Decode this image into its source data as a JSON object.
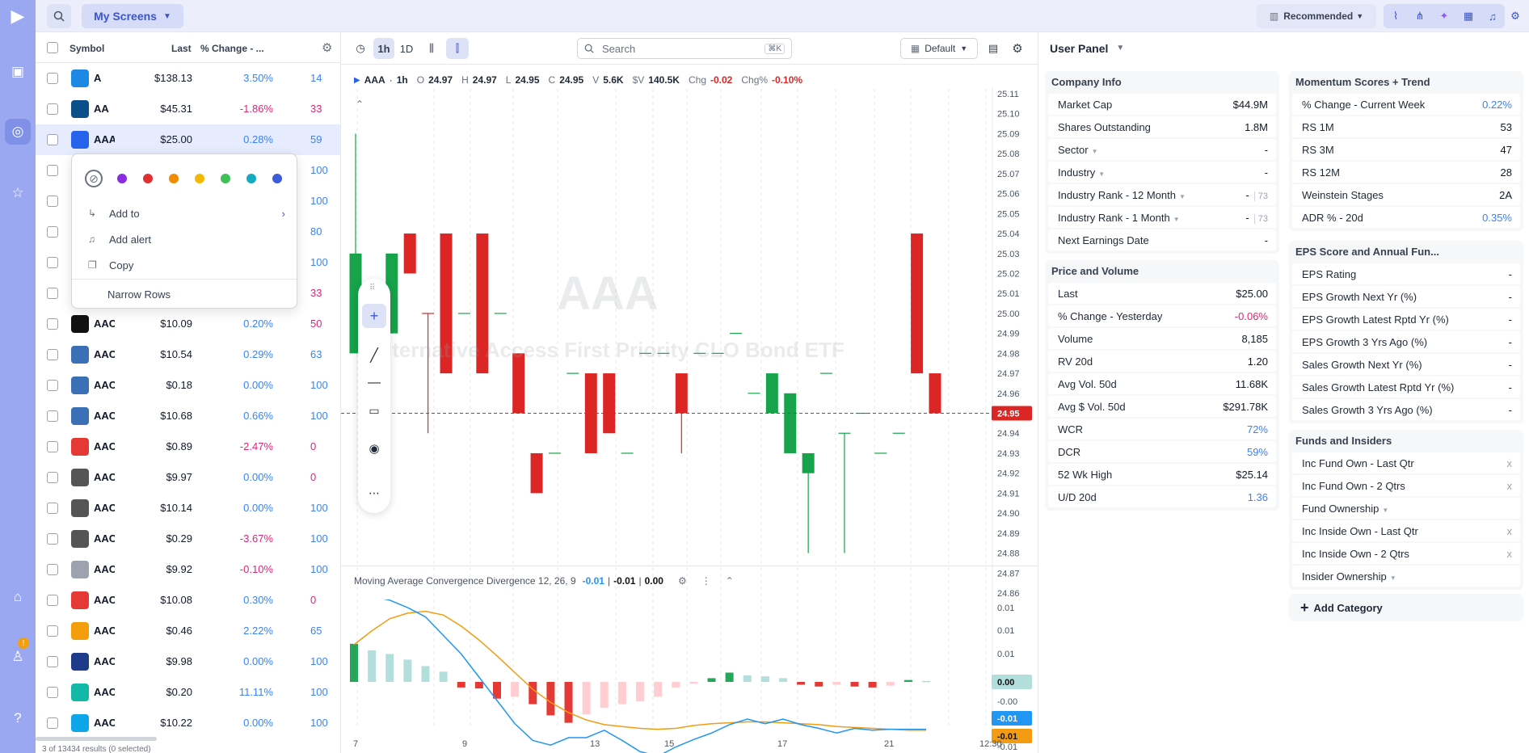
{
  "header": {
    "screens_label": "My Screens",
    "recommended_label": "Recommended"
  },
  "symbols": {
    "columns": {
      "symbol": "Symbol",
      "last": "Last",
      "pct": "% Change - ..."
    },
    "footer": "3 of 13434 results (0 selected)",
    "rows": [
      {
        "tick": "A",
        "last": "$138.13",
        "pct": "3.50%",
        "extra": "14",
        "dir": "pos",
        "logo_color": "#1e88e5"
      },
      {
        "tick": "AA",
        "last": "$45.31",
        "pct": "-1.86%",
        "extra": "33",
        "dir": "neg",
        "logo_color": "#0b4f8a"
      },
      {
        "tick": "AAA",
        "last": "$25.00",
        "pct": "0.28%",
        "extra": "59",
        "dir": "pos",
        "logo_color": "#2563eb",
        "selected": true
      },
      {
        "tick": "AAC",
        "last": "",
        "pct": "",
        "extra": "100",
        "dir": "pos",
        "logo_color": "#ffffff"
      },
      {
        "tick": "AAC",
        "last": "",
        "pct": "",
        "extra": "100",
        "dir": "pos",
        "logo_color": "#ffffff"
      },
      {
        "tick": "AAC",
        "last": "",
        "pct": "",
        "extra": "80",
        "dir": "pos",
        "logo_color": "#ffffff"
      },
      {
        "tick": "AAC",
        "last": "",
        "pct": "",
        "extra": "100",
        "dir": "pos",
        "logo_color": "#ffffff"
      },
      {
        "tick": "AAC",
        "last": "",
        "pct": "",
        "extra": "33",
        "dir": "neg",
        "logo_color": "#ffffff"
      },
      {
        "tick": "AAC",
        "last": "$10.09",
        "pct": "0.20%",
        "extra": "50",
        "dir": "neg",
        "logo_color": "#111111"
      },
      {
        "tick": "AAC",
        "last": "$10.54",
        "pct": "0.29%",
        "extra": "63",
        "dir": "pos",
        "logo_color": "#3b6fb6"
      },
      {
        "tick": "AAC",
        "last": "$0.18",
        "pct": "0.00%",
        "extra": "100",
        "dir": "pos",
        "logo_color": "#3b6fb6"
      },
      {
        "tick": "AAC",
        "last": "$10.68",
        "pct": "0.66%",
        "extra": "100",
        "dir": "pos",
        "logo_color": "#3b6fb6"
      },
      {
        "tick": "AAC",
        "last": "$0.89",
        "pct": "-2.47%",
        "extra": "0",
        "dir": "neg",
        "logo_color": "#e53935"
      },
      {
        "tick": "AAC",
        "last": "$9.97",
        "pct": "0.00%",
        "extra": "0",
        "dir": "neg",
        "logo_color": "#555555"
      },
      {
        "tick": "AAC",
        "last": "$10.14",
        "pct": "0.00%",
        "extra": "100",
        "dir": "pos",
        "logo_color": "#555555"
      },
      {
        "tick": "AAC",
        "last": "$0.29",
        "pct": "-3.67%",
        "extra": "100",
        "dir": "pos",
        "logo_color": "#555555"
      },
      {
        "tick": "AAC",
        "last": "$9.92",
        "pct": "-0.10%",
        "extra": "100",
        "dir": "pos",
        "logo_color": "#9ca3af"
      },
      {
        "tick": "AAC",
        "last": "$10.08",
        "pct": "0.30%",
        "extra": "0",
        "dir": "neg",
        "logo_color": "#e53935"
      },
      {
        "tick": "AAC",
        "last": "$0.46",
        "pct": "2.22%",
        "extra": "65",
        "dir": "pos",
        "logo_color": "#f59e0b"
      },
      {
        "tick": "AAC",
        "last": "$9.98",
        "pct": "0.00%",
        "extra": "100",
        "dir": "pos",
        "logo_color": "#1e3a8a"
      },
      {
        "tick": "AAC",
        "last": "$0.20",
        "pct": "11.11%",
        "extra": "100",
        "dir": "pos",
        "logo_color": "#14b8a6"
      },
      {
        "tick": "AAC",
        "last": "$10.22",
        "pct": "0.00%",
        "extra": "100",
        "dir": "pos",
        "logo_color": "#0ea5e9"
      }
    ]
  },
  "context_menu": {
    "colors": [
      "#8b2be2",
      "#e03131",
      "#f08c00",
      "#f5b800",
      "#40c057",
      "#15aabf",
      "#3b5bdb"
    ],
    "add_to": "Add to",
    "add_alert": "Add alert",
    "copy": "Copy",
    "narrow_rows": "Narrow Rows"
  },
  "chart_toolbar": {
    "interval_1h": "1h",
    "interval_1d": "1D",
    "search_placeholder": "Search",
    "search_shortcut": "⌘K",
    "layout": "Default"
  },
  "legend": {
    "symbol": "AAA",
    "interval": "1h",
    "o_label": "O",
    "o": "24.97",
    "h_label": "H",
    "h": "24.97",
    "l_label": "L",
    "l": "24.95",
    "c_label": "C",
    "c": "24.95",
    "v_label": "V",
    "v": "5.6K",
    "sv_label": "$V",
    "sv": "140.5K",
    "chg_label": "Chg",
    "chg": "-0.02",
    "chgp_label": "Chg%",
    "chgp": "-0.10%"
  },
  "watermark": {
    "symbol": "AAA",
    "name": "Alternative Access First Priority CLO Bond ETF"
  },
  "macd": {
    "title": "Moving Average Convergence Divergence 12, 26, 9",
    "v1": "-0.01",
    "v2": "-0.01",
    "v3": "0.00",
    "badge_hist": "0.00",
    "badge_macd": "-0.01",
    "badge_signal": "-0.01"
  },
  "chart_data": [
    {
      "type": "candlestick",
      "title": "",
      "x_tick_labels": [
        "7",
        "9",
        "13",
        "15",
        "17",
        "21",
        "12:30"
      ],
      "y_tick_labels": [
        "25.11",
        "25.10",
        "25.09",
        "25.08",
        "25.07",
        "25.06",
        "25.05",
        "25.04",
        "25.03",
        "25.02",
        "25.01",
        "25.00",
        "24.99",
        "24.98",
        "24.97",
        "24.96",
        "24.95",
        "24.94",
        "24.93",
        "24.92",
        "24.91",
        "24.90",
        "24.89",
        "24.88",
        "24.87",
        "24.86"
      ],
      "ylim": [
        24.86,
        25.11
      ],
      "last_price": 24.95,
      "last_price_label": "24.95",
      "candles": [
        {
          "o": 24.98,
          "h": 25.09,
          "l": 24.98,
          "c": 25.03,
          "up": true
        },
        {
          "o": 25.01,
          "h": 25.01,
          "l": 24.97,
          "c": 25.0,
          "up": true
        },
        {
          "o": 24.99,
          "h": 25.03,
          "l": 24.99,
          "c": 25.03,
          "up": true
        },
        {
          "o": 25.04,
          "h": 25.04,
          "l": 25.02,
          "c": 25.02,
          "up": false
        },
        {
          "o": 25.0,
          "h": 25.0,
          "l": 24.94,
          "c": 25.0,
          "up": false
        },
        {
          "o": 25.04,
          "h": 25.04,
          "l": 24.97,
          "c": 24.97,
          "up": false
        },
        {
          "o": 25.0,
          "h": 25.0,
          "l": 25.0,
          "c": 25.0,
          "up": true
        },
        {
          "o": 25.04,
          "h": 25.04,
          "l": 24.97,
          "c": 24.97,
          "up": false
        },
        {
          "o": 25.0,
          "h": 25.0,
          "l": 25.0,
          "c": 25.0,
          "up": true
        },
        {
          "o": 24.98,
          "h": 24.98,
          "l": 24.95,
          "c": 24.95,
          "up": false
        },
        {
          "o": 24.93,
          "h": 24.93,
          "l": 24.91,
          "c": 24.91,
          "up": false
        },
        {
          "o": 24.93,
          "h": 24.93,
          "l": 24.93,
          "c": 24.93,
          "up": true
        },
        {
          "o": 24.97,
          "h": 24.97,
          "l": 24.97,
          "c": 24.97,
          "up": true
        },
        {
          "o": 24.97,
          "h": 24.97,
          "l": 24.93,
          "c": 24.93,
          "up": false
        },
        {
          "o": 24.97,
          "h": 24.97,
          "l": 24.94,
          "c": 24.94,
          "up": false
        },
        {
          "o": 24.93,
          "h": 24.93,
          "l": 24.93,
          "c": 24.93,
          "up": true
        },
        {
          "o": 24.98,
          "h": 24.98,
          "l": 24.98,
          "c": 24.98,
          "up": true
        },
        {
          "o": 24.98,
          "h": 24.98,
          "l": 24.98,
          "c": 24.98,
          "up": true
        },
        {
          "o": 24.97,
          "h": 24.97,
          "l": 24.93,
          "c": 24.95,
          "up": false
        },
        {
          "o": 24.98,
          "h": 24.98,
          "l": 24.98,
          "c": 24.98,
          "up": true
        },
        {
          "o": 24.98,
          "h": 24.98,
          "l": 24.98,
          "c": 24.98,
          "up": true
        },
        {
          "o": 24.99,
          "h": 24.99,
          "l": 24.99,
          "c": 24.99,
          "up": true
        },
        {
          "o": 24.96,
          "h": 24.96,
          "l": 24.96,
          "c": 24.96,
          "up": true
        },
        {
          "o": 24.97,
          "h": 24.97,
          "l": 24.95,
          "c": 24.95,
          "up": true
        },
        {
          "o": 24.93,
          "h": 24.96,
          "l": 24.93,
          "c": 24.96,
          "up": true
        },
        {
          "o": 24.93,
          "h": 24.93,
          "l": 24.88,
          "c": 24.92,
          "up": true
        },
        {
          "o": 24.97,
          "h": 24.97,
          "l": 24.97,
          "c": 24.97,
          "up": true
        },
        {
          "o": 24.94,
          "h": 24.94,
          "l": 24.88,
          "c": 24.94,
          "up": true
        },
        {
          "o": 24.95,
          "h": 24.95,
          "l": 24.95,
          "c": 24.95,
          "up": true
        },
        {
          "o": 24.93,
          "h": 24.93,
          "l": 24.93,
          "c": 24.93,
          "up": true
        },
        {
          "o": 24.94,
          "h": 24.94,
          "l": 24.94,
          "c": 24.94,
          "up": true
        },
        {
          "o": 25.04,
          "h": 25.04,
          "l": 24.97,
          "c": 24.97,
          "up": false
        },
        {
          "o": 24.97,
          "h": 24.97,
          "l": 24.95,
          "c": 24.95,
          "up": false
        }
      ]
    },
    {
      "type": "bar",
      "title": "",
      "y_tick_labels": [
        "0.01",
        "0.01",
        "0.01",
        "0.00",
        "-0.00",
        "-0.01",
        "-0.01"
      ],
      "histogram": [
        0.0041,
        0.0034,
        0.003,
        0.0024,
        0.0017,
        0.0011,
        -0.0006,
        -0.0007,
        -0.0018,
        -0.0016,
        -0.0024,
        -0.0036,
        -0.0044,
        -0.0035,
        -0.0028,
        -0.0024,
        -0.0021,
        -0.0016,
        -0.0006,
        -0.0002,
        0.0004,
        0.001,
        0.0007,
        0.0006,
        0.0004,
        -0.0003,
        -0.0005,
        -0.0003,
        -0.0005,
        -0.0006,
        -0.0004,
        0.0002,
        0.0001
      ],
      "macd_line": [
        0.0095,
        0.0092,
        0.0088,
        0.008,
        0.007,
        0.005,
        0.003,
        0.0005,
        -0.002,
        -0.0045,
        -0.0063,
        -0.0068,
        -0.006,
        -0.006,
        -0.0052,
        -0.0063,
        -0.0075,
        -0.008,
        -0.007,
        -0.0062,
        -0.0055,
        -0.0046,
        -0.004,
        -0.0045,
        -0.004,
        -0.0046,
        -0.005,
        -0.0055,
        -0.005,
        -0.0052,
        -0.0051,
        -0.0051,
        -0.0051
      ],
      "signal_line": [
        0.004,
        0.0055,
        0.0068,
        0.0074,
        0.0076,
        0.0072,
        0.006,
        0.0045,
        0.0028,
        0.001,
        -0.0008,
        -0.0022,
        -0.0033,
        -0.0041,
        -0.0046,
        -0.0048,
        -0.005,
        -0.0051,
        -0.005,
        -0.0047,
        -0.0045,
        -0.0044,
        -0.0043,
        -0.0043,
        -0.0044,
        -0.0045,
        -0.0046,
        -0.0048,
        -0.0049,
        -0.005,
        -0.0051,
        -0.0052,
        -0.0052
      ]
    }
  ],
  "user_panel": {
    "title": "User Panel",
    "company_info": {
      "title": "Company Info",
      "rows": [
        {
          "k": "Market Cap",
          "v": "$44.9M",
          "c": ""
        },
        {
          "k": "Shares Outstanding",
          "v": "1.8M",
          "c": ""
        },
        {
          "k": "Sector",
          "v": "-",
          "c": "",
          "dd": true
        },
        {
          "k": "Industry",
          "v": "-",
          "c": "",
          "dd": true
        },
        {
          "k": "Industry Rank - 12 Month",
          "v": "-",
          "v2": "73",
          "c": "",
          "dd": true
        },
        {
          "k": "Industry Rank - 1 Month",
          "v": "-",
          "v2": "73",
          "c": "",
          "dd": true
        },
        {
          "k": "Next Earnings Date",
          "v": "-",
          "c": ""
        }
      ]
    },
    "price_volume": {
      "title": "Price and Volume",
      "rows": [
        {
          "k": "Last",
          "v": "$25.00",
          "c": ""
        },
        {
          "k": "% Change - Yesterday",
          "v": "-0.06%",
          "c": "pink"
        },
        {
          "k": "Volume",
          "v": "8,185",
          "c": ""
        },
        {
          "k": "RV 20d",
          "v": "1.20",
          "c": ""
        },
        {
          "k": "Avg Vol. 50d",
          "v": "11.68K",
          "c": ""
        },
        {
          "k": "Avg $ Vol. 50d",
          "v": "$291.78K",
          "c": ""
        },
        {
          "k": "WCR",
          "v": "72%",
          "c": "blue"
        },
        {
          "k": "DCR",
          "v": "59%",
          "c": "blue"
        },
        {
          "k": "52 Wk High",
          "v": "$25.14",
          "c": ""
        },
        {
          "k": "U/D 20d",
          "v": "1.36",
          "c": "blue"
        }
      ]
    },
    "momentum": {
      "title": "Momentum Scores + Trend",
      "rows": [
        {
          "k": "% Change - Current Week",
          "v": "0.22%",
          "c": "blue"
        },
        {
          "k": "RS 1M",
          "v": "53",
          "c": ""
        },
        {
          "k": "RS 3M",
          "v": "47",
          "c": ""
        },
        {
          "k": "RS 12M",
          "v": "28",
          "c": ""
        },
        {
          "k": "Weinstein Stages",
          "v": "2A",
          "c": ""
        },
        {
          "k": "ADR % - 20d",
          "v": "0.35%",
          "c": "blue"
        }
      ]
    },
    "eps": {
      "title": "EPS Score and Annual Fun...",
      "rows": [
        {
          "k": "EPS Rating",
          "v": "-",
          "c": ""
        },
        {
          "k": "EPS Growth Next Yr (%)",
          "v": "-",
          "c": ""
        },
        {
          "k": "EPS Growth Latest Rptd Yr (%)",
          "v": "-",
          "c": ""
        },
        {
          "k": "EPS Growth 3 Yrs Ago (%)",
          "v": "-",
          "c": ""
        },
        {
          "k": "Sales Growth Next Yr (%)",
          "v": "-",
          "c": ""
        },
        {
          "k": "Sales Growth Latest Rptd Yr (%)",
          "v": "-",
          "c": ""
        },
        {
          "k": "Sales Growth 3 Yrs Ago (%)",
          "v": "-",
          "c": ""
        }
      ]
    },
    "funds": {
      "title": "Funds and Insiders",
      "rows": [
        {
          "k": "Inc Fund Own - Last Qtr",
          "v": "x",
          "c": "gray"
        },
        {
          "k": "Inc Fund Own - 2 Qtrs",
          "v": "x",
          "c": "gray"
        },
        {
          "k": "Fund Ownership",
          "v": "",
          "c": "",
          "dd": true
        },
        {
          "k": "Inc Inside Own - Last Qtr",
          "v": "x",
          "c": "gray"
        },
        {
          "k": "Inc Inside Own - 2 Qtrs",
          "v": "x",
          "c": "gray"
        },
        {
          "k": "Insider Ownership",
          "v": "",
          "c": "",
          "dd": true
        }
      ]
    },
    "add_category": "Add Category"
  }
}
